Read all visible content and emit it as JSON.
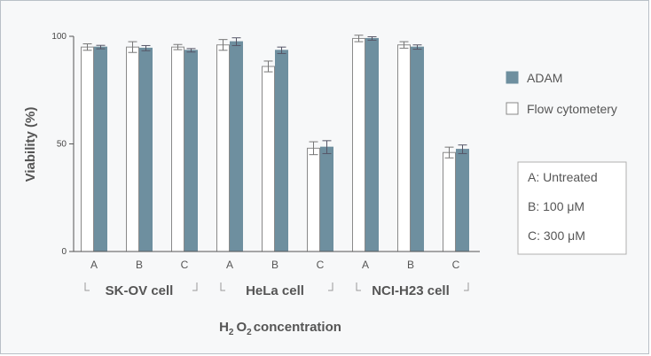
{
  "chart_data": {
    "type": "bar",
    "ylabel": "Viability (%)",
    "xlabel": {
      "main": "H",
      "sub1": "2",
      "mid": "O",
      "sub2": "2",
      "rest": "concentration"
    },
    "ylim": [
      0,
      100
    ],
    "yticks": [
      "0",
      "50",
      "100"
    ],
    "grid": false,
    "categories": [
      "A",
      "B",
      "C",
      "A",
      "B",
      "C",
      "A",
      "B",
      "C"
    ],
    "groups": [
      {
        "label": "SK-OV cell",
        "categories": [
          "A",
          "B",
          "C"
        ]
      },
      {
        "label": "HeLa cell",
        "categories": [
          "A",
          "B",
          "C"
        ]
      },
      {
        "label": "NCI-H23 cell",
        "categories": [
          "A",
          "B",
          "C"
        ]
      }
    ],
    "series": [
      {
        "name": "Flow cytometery",
        "color": "#ffffff",
        "values": [
          95,
          95,
          95,
          96,
          86,
          48,
          99,
          96,
          46
        ],
        "errors": [
          1.5,
          2.5,
          1.2,
          2.5,
          2.5,
          3,
          1.5,
          1.5,
          2.5
        ]
      },
      {
        "name": "ADAM",
        "color": "#6e8f9f",
        "values": [
          95,
          94.5,
          93.5,
          97.5,
          93.5,
          48.5,
          99,
          95,
          47.5
        ],
        "errors": [
          0.8,
          1.2,
          0.8,
          1.8,
          1.5,
          3,
          0.8,
          1,
          2
        ]
      }
    ],
    "legend_placement": "right",
    "annotation": [
      "A: Untreated",
      "B: 100 μM",
      "C: 300 μM"
    ]
  }
}
